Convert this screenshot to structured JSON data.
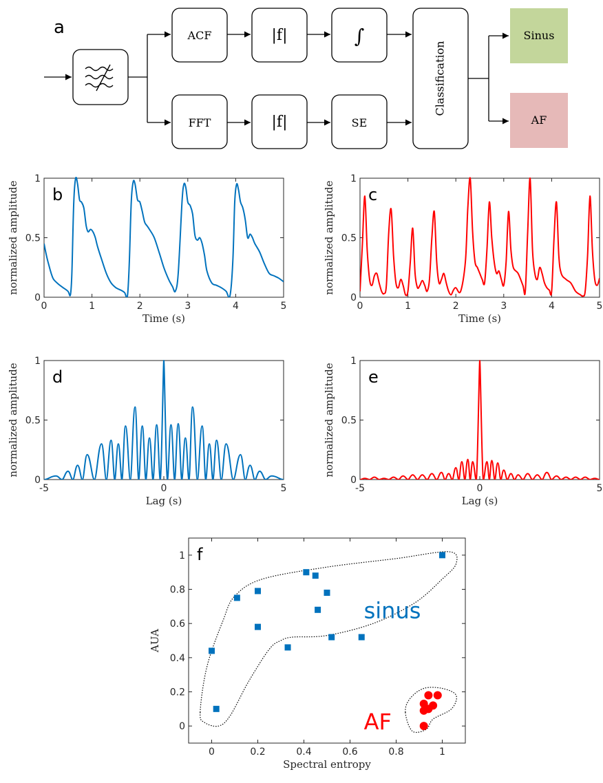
{
  "diagram": {
    "panel_letter": "a",
    "blocks": {
      "filter": "",
      "acf": "ACF",
      "abs_top": "|f|",
      "integral": "∫",
      "fft": "FFT",
      "abs_bottom": "|f|",
      "se": "SE",
      "classification": "Classification",
      "sinus": "Sinus",
      "af": "AF"
    },
    "colors": {
      "sinus": "#c3d69b",
      "af": "#e6b9b8",
      "stroke": "#000000"
    }
  },
  "colors": {
    "sinus_series": "#0072bd",
    "af_series": "#ff0000"
  },
  "chart_data": [
    {
      "panel": "b",
      "type": "line",
      "ylabel": "normalized amplitude",
      "xlabel": "Time (s)",
      "xlim": [
        0,
        5
      ],
      "ylim": [
        0,
        1
      ],
      "xticks": [
        "0",
        "1",
        "2",
        "3",
        "4",
        "5"
      ],
      "yticks": [
        "0",
        "0.5",
        "1"
      ],
      "color": "#0072bd",
      "x": [
        0,
        0.05,
        0.1,
        0.15,
        0.2,
        0.3,
        0.4,
        0.5,
        0.55,
        0.58,
        0.62,
        0.66,
        0.7,
        0.74,
        0.78,
        0.83,
        0.88,
        0.92,
        0.97,
        1.02,
        1.07,
        1.12,
        1.2,
        1.3,
        1.4,
        1.5,
        1.6,
        1.68,
        1.74,
        1.78,
        1.82,
        1.86,
        1.9,
        1.95,
        2.0,
        2.05,
        2.1,
        2.15,
        2.2,
        2.3,
        2.4,
        2.5,
        2.6,
        2.68,
        2.74,
        2.8,
        2.88,
        2.92,
        2.96,
        3.0,
        3.05,
        3.1,
        3.15,
        3.2,
        3.25,
        3.3,
        3.35,
        3.4,
        3.5,
        3.6,
        3.7,
        3.8,
        3.88,
        3.94,
        3.98,
        4.02,
        4.06,
        4.1,
        4.15,
        4.2,
        4.25,
        4.3,
        4.35,
        4.4,
        4.5,
        4.6,
        4.7,
        4.8,
        4.9,
        5.0
      ],
      "y": [
        0.45,
        0.35,
        0.27,
        0.2,
        0.15,
        0.11,
        0.08,
        0.05,
        0.02,
        0.2,
        0.8,
        1.0,
        0.95,
        0.82,
        0.8,
        0.75,
        0.6,
        0.55,
        0.57,
        0.55,
        0.5,
        0.42,
        0.32,
        0.2,
        0.12,
        0.08,
        0.06,
        0.04,
        0.01,
        0.3,
        0.8,
        0.97,
        0.95,
        0.82,
        0.8,
        0.72,
        0.63,
        0.6,
        0.57,
        0.5,
        0.38,
        0.25,
        0.15,
        0.09,
        0.05,
        0.2,
        0.8,
        0.95,
        0.92,
        0.8,
        0.77,
        0.7,
        0.52,
        0.48,
        0.5,
        0.45,
        0.35,
        0.22,
        0.12,
        0.1,
        0.08,
        0.05,
        0.01,
        0.3,
        0.8,
        0.95,
        0.9,
        0.8,
        0.75,
        0.65,
        0.5,
        0.53,
        0.5,
        0.45,
        0.38,
        0.28,
        0.2,
        0.18,
        0.16,
        0.13
      ]
    },
    {
      "panel": "c",
      "type": "line",
      "ylabel": "normalized amplitude",
      "xlabel": "Time (s)",
      "xlim": [
        0,
        5
      ],
      "ylim": [
        0,
        1
      ],
      "xticks": [
        "0",
        "1",
        "2",
        "3",
        "4",
        "5"
      ],
      "yticks": [
        "0",
        "0.5",
        "1"
      ],
      "color": "#ff0000",
      "x": [
        0,
        0.05,
        0.1,
        0.15,
        0.2,
        0.25,
        0.3,
        0.35,
        0.4,
        0.45,
        0.5,
        0.55,
        0.6,
        0.65,
        0.7,
        0.75,
        0.8,
        0.85,
        0.9,
        0.95,
        1.0,
        1.05,
        1.1,
        1.15,
        1.2,
        1.25,
        1.3,
        1.35,
        1.4,
        1.45,
        1.5,
        1.55,
        1.6,
        1.65,
        1.7,
        1.75,
        1.8,
        1.85,
        1.9,
        1.95,
        2.0,
        2.1,
        2.2,
        2.25,
        2.3,
        2.35,
        2.4,
        2.45,
        2.5,
        2.55,
        2.6,
        2.65,
        2.7,
        2.75,
        2.8,
        2.85,
        2.9,
        2.95,
        3.0,
        3.05,
        3.1,
        3.15,
        3.2,
        3.3,
        3.4,
        3.45,
        3.5,
        3.55,
        3.6,
        3.65,
        3.7,
        3.75,
        3.8,
        3.85,
        3.9,
        3.95,
        4.0,
        4.05,
        4.1,
        4.15,
        4.2,
        4.3,
        4.4,
        4.5,
        4.6,
        4.65,
        4.7,
        4.75,
        4.8,
        4.85,
        4.9,
        4.95,
        5.0
      ],
      "y": [
        0.05,
        0.45,
        0.85,
        0.4,
        0.15,
        0.1,
        0.18,
        0.2,
        0.12,
        0.05,
        0.03,
        0.1,
        0.55,
        0.74,
        0.35,
        0.12,
        0.08,
        0.15,
        0.1,
        0.02,
        0.05,
        0.3,
        0.58,
        0.2,
        0.08,
        0.1,
        0.14,
        0.1,
        0.05,
        0.15,
        0.5,
        0.72,
        0.3,
        0.12,
        0.15,
        0.2,
        0.12,
        0.05,
        0.02,
        0.06,
        0.08,
        0.05,
        0.3,
        0.75,
        1.0,
        0.55,
        0.3,
        0.25,
        0.2,
        0.15,
        0.12,
        0.4,
        0.8,
        0.5,
        0.3,
        0.2,
        0.22,
        0.15,
        0.1,
        0.3,
        0.72,
        0.4,
        0.25,
        0.2,
        0.1,
        0.05,
        0.55,
        1.0,
        0.4,
        0.2,
        0.15,
        0.25,
        0.2,
        0.12,
        0.08,
        0.06,
        0.05,
        0.5,
        0.8,
        0.35,
        0.2,
        0.15,
        0.12,
        0.05,
        0.02,
        0.01,
        0.05,
        0.35,
        0.85,
        0.4,
        0.15,
        0.1,
        0.16
      ]
    },
    {
      "panel": "d",
      "type": "line",
      "ylabel": "normalized amplitude",
      "xlabel": "Lag (s)",
      "xlim": [
        -5,
        5
      ],
      "ylim": [
        0,
        1
      ],
      "xticks": [
        "-5",
        "0",
        "5"
      ],
      "yticks": [
        "0",
        "0.5",
        "1"
      ],
      "color": "#0072bd",
      "peaks": [
        [
          -4.5,
          0.03
        ],
        [
          -4.0,
          0.07
        ],
        [
          -3.6,
          0.12
        ],
        [
          -3.2,
          0.21
        ],
        [
          -2.6,
          0.3
        ],
        [
          -2.2,
          0.33
        ],
        [
          -1.9,
          0.3
        ],
        [
          -1.6,
          0.45
        ],
        [
          -1.2,
          0.61
        ],
        [
          -0.9,
          0.45
        ],
        [
          -0.6,
          0.35
        ],
        [
          -0.3,
          0.46
        ],
        [
          0,
          1.0
        ],
        [
          0.3,
          0.46
        ],
        [
          0.6,
          0.47
        ],
        [
          0.9,
          0.35
        ],
        [
          1.2,
          0.61
        ],
        [
          1.6,
          0.45
        ],
        [
          1.9,
          0.3
        ],
        [
          2.2,
          0.33
        ],
        [
          2.6,
          0.3
        ],
        [
          3.2,
          0.21
        ],
        [
          3.6,
          0.12
        ],
        [
          4.0,
          0.07
        ],
        [
          4.5,
          0.03
        ]
      ]
    },
    {
      "panel": "e",
      "type": "line",
      "ylabel": "normalized amplitude",
      "xlabel": "Lag (s)",
      "xlim": [
        -5,
        5
      ],
      "ylim": [
        0,
        1
      ],
      "xticks": [
        "-5",
        "0",
        "5"
      ],
      "yticks": [
        "0",
        "0.5",
        "1"
      ],
      "color": "#ff0000",
      "peaks": [
        [
          -4.8,
          0.01
        ],
        [
          -4.4,
          0.02
        ],
        [
          -4.0,
          0.01
        ],
        [
          -3.6,
          0.02
        ],
        [
          -3.2,
          0.03
        ],
        [
          -2.8,
          0.04
        ],
        [
          -2.4,
          0.04
        ],
        [
          -2.0,
          0.05
        ],
        [
          -1.6,
          0.06
        ],
        [
          -1.3,
          0.05
        ],
        [
          -1.0,
          0.1
        ],
        [
          -0.75,
          0.15
        ],
        [
          -0.5,
          0.17
        ],
        [
          -0.3,
          0.15
        ],
        [
          0,
          1.0
        ],
        [
          0.3,
          0.15
        ],
        [
          0.5,
          0.16
        ],
        [
          0.75,
          0.14
        ],
        [
          1.0,
          0.08
        ],
        [
          1.3,
          0.05
        ],
        [
          1.6,
          0.04
        ],
        [
          2.0,
          0.05
        ],
        [
          2.4,
          0.04
        ],
        [
          2.8,
          0.06
        ],
        [
          3.2,
          0.03
        ],
        [
          3.6,
          0.02
        ],
        [
          4.0,
          0.02
        ],
        [
          4.4,
          0.02
        ],
        [
          4.8,
          0.01
        ]
      ]
    },
    {
      "panel": "f",
      "type": "scatter",
      "xlabel": "Spectral entropy",
      "ylabel": "AUA",
      "xlim": [
        -0.1,
        1.1
      ],
      "ylim": [
        -0.1,
        1.1
      ],
      "xticks": [
        "0",
        "0.2",
        "0.4",
        "0.6",
        "0.8",
        "1"
      ],
      "yticks": [
        "0",
        "0.2",
        "0.4",
        "0.6",
        "0.8",
        "1"
      ],
      "series": [
        {
          "name": "sinus",
          "color": "#0072bd",
          "marker": "square",
          "points": [
            [
              0,
              0.44
            ],
            [
              0.02,
              0.1
            ],
            [
              0.11,
              0.75
            ],
            [
              0.2,
              0.79
            ],
            [
              0.2,
              0.58
            ],
            [
              0.33,
              0.46
            ],
            [
              0.41,
              0.9
            ],
            [
              0.45,
              0.88
            ],
            [
              0.46,
              0.68
            ],
            [
              0.5,
              0.78
            ],
            [
              0.52,
              0.52
            ],
            [
              0.65,
              0.52
            ],
            [
              1.0,
              1.0
            ]
          ]
        },
        {
          "name": "AF",
          "color": "#ff0000",
          "marker": "circle",
          "points": [
            [
              0.92,
              0.0
            ],
            [
              0.92,
              0.09
            ],
            [
              0.92,
              0.13
            ],
            [
              0.94,
              0.1
            ],
            [
              0.94,
              0.18
            ],
            [
              0.96,
              0.12
            ],
            [
              0.98,
              0.18
            ]
          ]
        }
      ]
    }
  ]
}
